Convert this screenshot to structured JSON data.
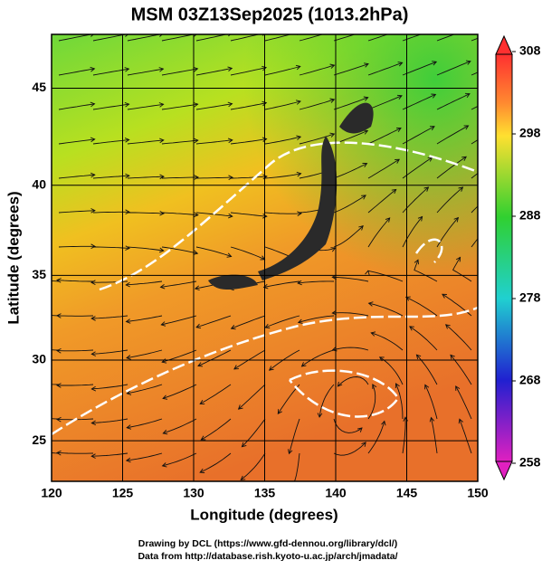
{
  "map": {
    "title": "MSM 03Z13Sep2025 (1013.2hPa)",
    "xlabel": "Longitude (degrees)",
    "ylabel": "Latitude  (degrees)",
    "xlim": [
      120,
      150
    ],
    "xticks": [
      120,
      125,
      130,
      135,
      140,
      145,
      150
    ],
    "ylim": [
      22.4,
      47.6
    ],
    "yticks": [
      25,
      30,
      35,
      40,
      45
    ],
    "colorbar": {
      "lim": [
        258,
        308
      ],
      "ticks": [
        258,
        268,
        278,
        288,
        298,
        308
      ]
    },
    "credits": [
      "Drawing by DCL (https://www.gfd-dennou.org/library/dcl/)",
      "Data from http://database.rish.kyoto-u.ac.jp/arch/jmadata/"
    ]
  }
}
